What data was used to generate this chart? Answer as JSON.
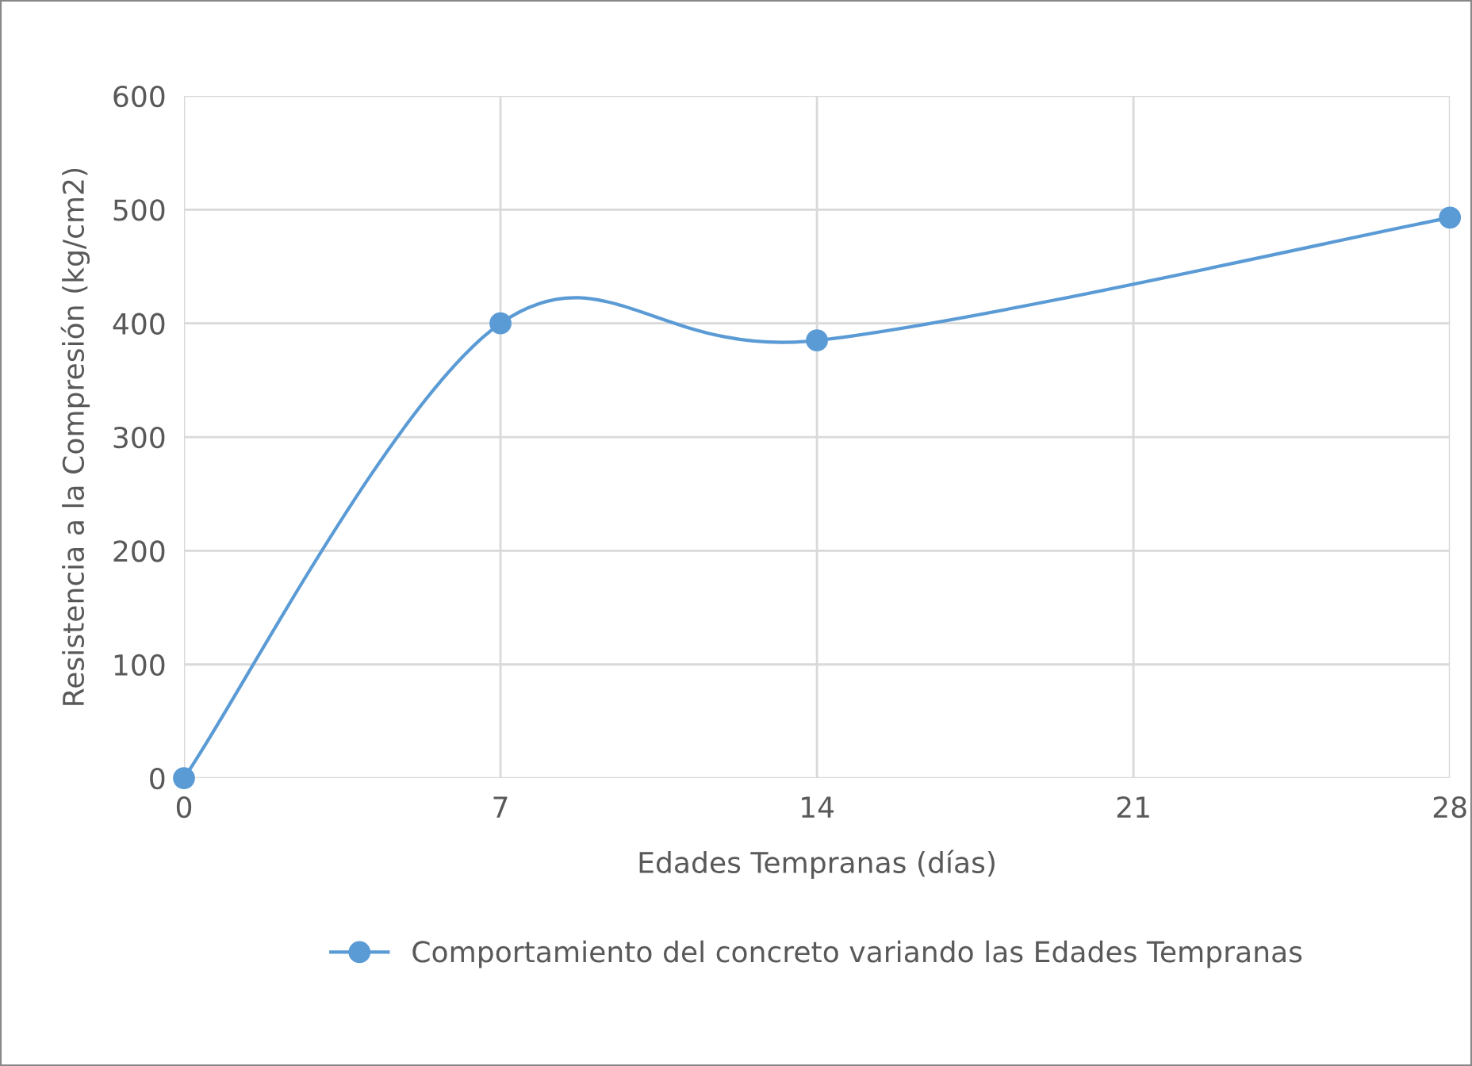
{
  "chart_data": {
    "type": "line",
    "xlabel": "Edades Tempranas (días)",
    "ylabel": "Resistencia a la Compresión (kg/cm2)",
    "x": [
      0,
      7,
      14,
      28
    ],
    "series": [
      {
        "name": "Comportamiento del concreto variando las Edades Tempranas",
        "color": "#5b9bd5",
        "values": [
          0,
          400,
          385,
          493
        ]
      }
    ],
    "xlim": [
      0,
      28
    ],
    "xticks": [
      0,
      7,
      14,
      21,
      28
    ],
    "ylim": [
      0,
      600
    ],
    "yticks": [
      0,
      100,
      200,
      300,
      400,
      500,
      600
    ],
    "grid": true,
    "legend": "bottom",
    "marker": "circle",
    "line_style": "solid"
  }
}
